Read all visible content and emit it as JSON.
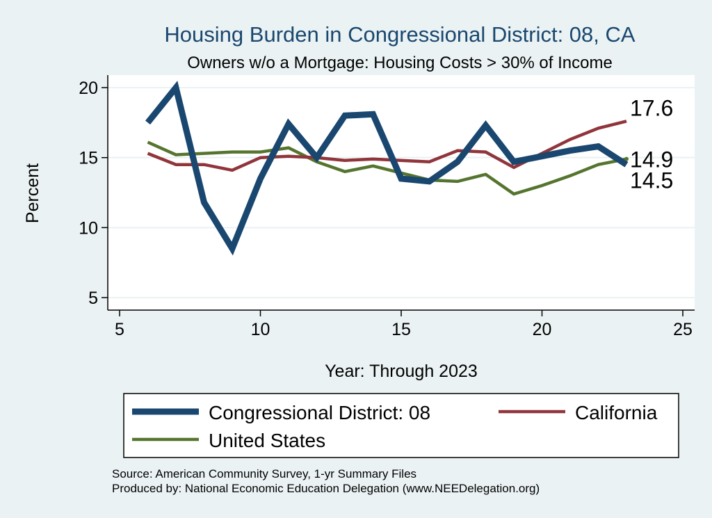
{
  "chart_data": {
    "type": "line",
    "title": "Housing Burden in Congressional District:  08, CA",
    "subtitle": "Owners w/o a Mortgage: Housing Costs > 30% of Income",
    "xlabel": "Year: Through 2023",
    "ylabel": "Percent",
    "xlim": [
      5,
      25
    ],
    "ylim": [
      5,
      20
    ],
    "xticks": [
      5,
      10,
      15,
      20,
      25
    ],
    "yticks": [
      5,
      10,
      15,
      20
    ],
    "grid": true,
    "legend_position": "bottom",
    "series": [
      {
        "name": "Congressional District:  08",
        "color": "#1a476f",
        "x": [
          6,
          7,
          8,
          9,
          10,
          11,
          12,
          13,
          14,
          15,
          16,
          17,
          18,
          19,
          20,
          21,
          22,
          23
        ],
        "values": [
          17.5,
          20.0,
          11.8,
          8.5,
          13.5,
          17.4,
          15.0,
          18.0,
          18.1,
          13.5,
          13.3,
          14.7,
          17.3,
          14.7,
          15.1,
          15.5,
          15.8,
          14.5
        ],
        "end_label": "14.5"
      },
      {
        "name": "California",
        "color": "#90353b",
        "x": [
          6,
          7,
          8,
          9,
          10,
          11,
          12,
          13,
          14,
          15,
          16,
          17,
          18,
          19,
          20,
          21,
          22,
          23
        ],
        "values": [
          15.3,
          14.5,
          14.5,
          14.1,
          15.0,
          15.1,
          15.0,
          14.8,
          14.9,
          14.8,
          14.7,
          15.5,
          15.4,
          14.3,
          15.3,
          16.3,
          17.1,
          17.6
        ],
        "end_label": "17.6"
      },
      {
        "name": "United States",
        "color": "#55752f",
        "x": [
          6,
          7,
          8,
          9,
          10,
          11,
          12,
          13,
          14,
          15,
          16,
          17,
          18,
          19,
          20,
          21,
          22,
          23
        ],
        "values": [
          16.1,
          15.2,
          15.3,
          15.4,
          15.4,
          15.7,
          14.7,
          14.0,
          14.4,
          13.9,
          13.4,
          13.3,
          13.8,
          12.4,
          13.0,
          13.7,
          14.5,
          14.9
        ],
        "end_label": "14.9"
      }
    ],
    "legend": [
      {
        "label": "Congressional District:  08",
        "series": 0
      },
      {
        "label": "California",
        "series": 1
      },
      {
        "label": "United States",
        "series": 2
      }
    ],
    "source_lines": [
      "Source: American Community Survey, 1-yr Summary Files",
      "Produced by: National Economic Education Delegation (www.NEEDelegation.org)"
    ]
  }
}
